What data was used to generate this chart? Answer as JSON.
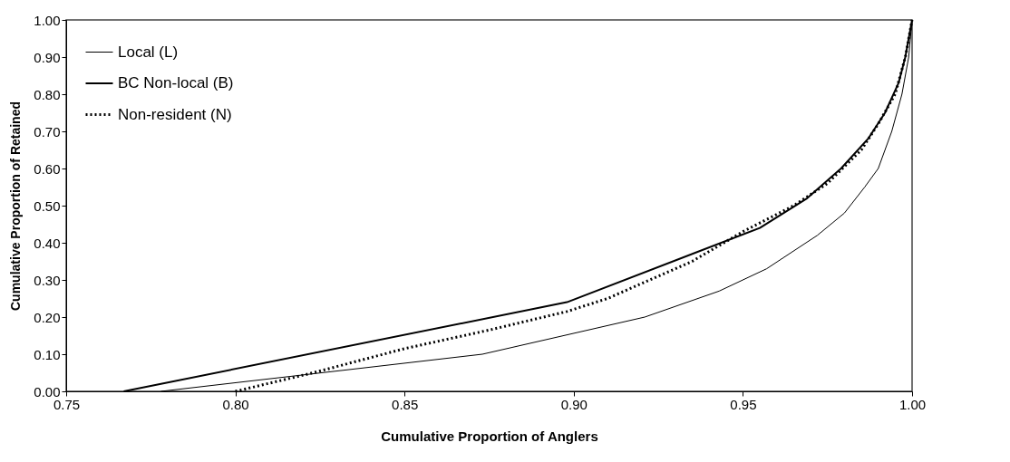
{
  "chart_data": {
    "type": "line",
    "xlabel": "Cumulative Proportion of Anglers",
    "ylabel": "Cumulative Proportion of Retained",
    "xlim": [
      0.75,
      1.0
    ],
    "xticks": [
      {
        "value": 0.75,
        "label": "0.75"
      },
      {
        "value": 0.8,
        "label": "0.80"
      },
      {
        "value": 0.85,
        "label": "0.85"
      },
      {
        "value": 0.9,
        "label": "0.90"
      },
      {
        "value": 0.95,
        "label": "0.95"
      },
      {
        "value": 1.0,
        "label": "1.00"
      }
    ],
    "ylim": [
      0,
      1.0
    ],
    "yticks": [
      {
        "value": 0,
        "label": "0.00"
      },
      {
        "value": 0.1,
        "label": "0.10"
      },
      {
        "value": 0.2,
        "label": "0.20"
      },
      {
        "value": 0.3,
        "label": "0.30"
      },
      {
        "value": 0.4,
        "label": "0.40"
      },
      {
        "value": 0.5,
        "label": "0.50"
      },
      {
        "value": 0.6,
        "label": "0.60"
      },
      {
        "value": 0.7,
        "label": "0.70"
      },
      {
        "value": 0.8,
        "label": "0.80"
      },
      {
        "value": 0.9,
        "label": "0.90"
      },
      {
        "value": 1.0,
        "label": "1.00"
      }
    ],
    "grid": false,
    "legend": "top left",
    "marker": "none",
    "series": [
      {
        "name": "Local (L)",
        "color": "#000000",
        "line_style": "solid",
        "x": [
          0.778,
          0.873,
          0.921,
          0.943,
          0.957,
          0.972,
          0.98,
          0.986,
          0.99,
          0.994,
          0.997,
          0.999,
          1.0
        ],
        "values": [
          0,
          0.1,
          0.2,
          0.27,
          0.33,
          0.42,
          0.48,
          0.55,
          0.6,
          0.7,
          0.8,
          0.9,
          1.0
        ]
      },
      {
        "name": "BC Non-local (B)",
        "color": "#000000",
        "line_style": "solid",
        "x": [
          0.767,
          0.898,
          0.955,
          0.969,
          0.979,
          0.987,
          0.992,
          0.996,
          0.998,
          1.0
        ],
        "values": [
          0,
          0.24,
          0.44,
          0.52,
          0.6,
          0.68,
          0.75,
          0.83,
          0.9,
          1.0
        ]
      },
      {
        "name": "Non-resident (N)",
        "color": "#000000",
        "line_style": "dotted",
        "x": [
          0.8,
          0.823,
          0.85,
          0.875,
          0.898,
          0.91,
          0.92,
          0.935,
          0.95,
          0.965,
          0.975,
          0.985,
          0.99,
          0.995,
          0.998,
          1.0
        ],
        "values": [
          0,
          0.05,
          0.115,
          0.165,
          0.215,
          0.25,
          0.29,
          0.35,
          0.43,
          0.5,
          0.56,
          0.65,
          0.72,
          0.8,
          0.9,
          1.0
        ]
      }
    ]
  }
}
